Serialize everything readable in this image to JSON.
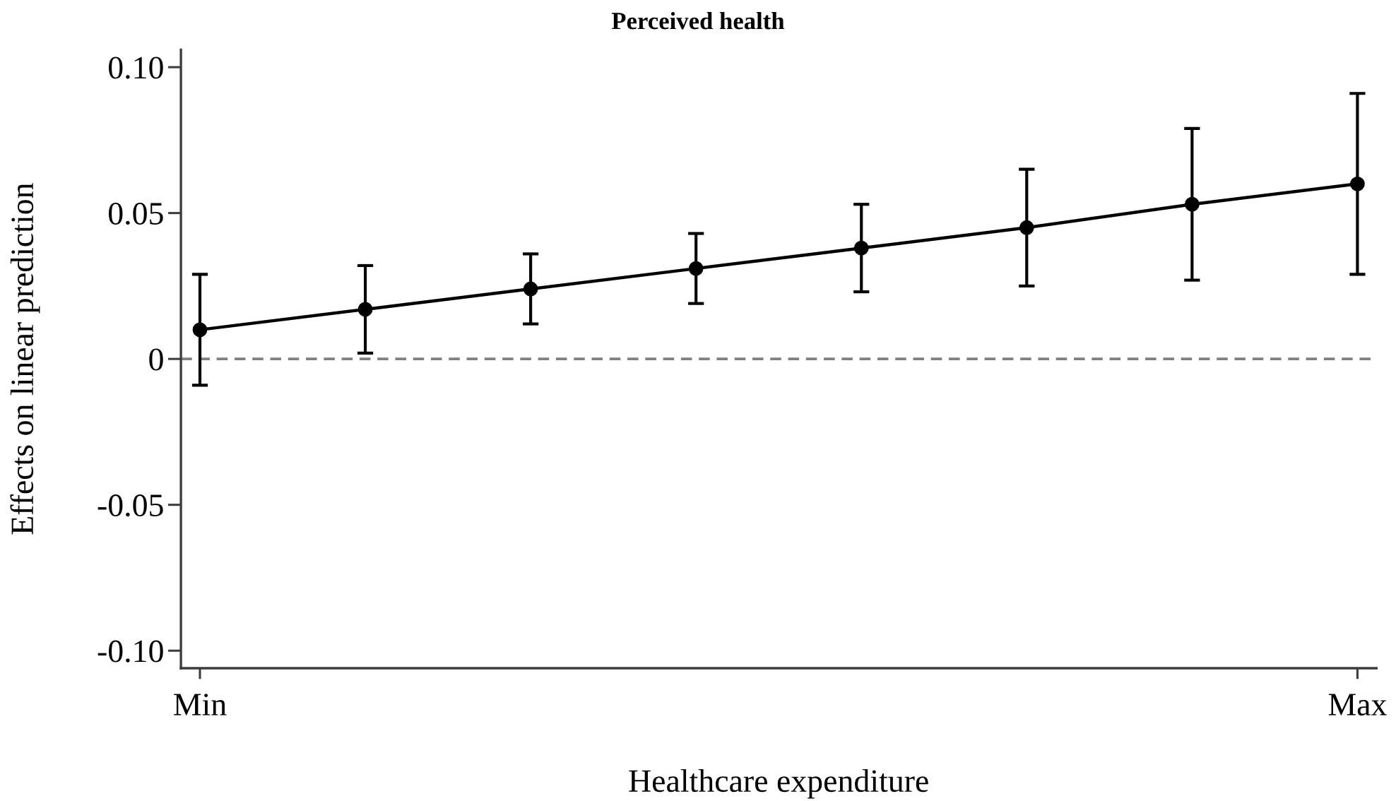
{
  "chart_data": {
    "type": "line",
    "title": "Perceived health",
    "xlabel": "Healthcare expenditure",
    "ylabel": "Effects on linear prediction",
    "categories": [
      "Min",
      null,
      null,
      null,
      null,
      null,
      null,
      "Max"
    ],
    "series": [
      {
        "color": "#000000",
        "values": [
          0.01,
          0.017,
          0.024,
          0.031,
          0.038,
          0.045,
          0.053,
          0.06
        ],
        "errors": [
          0.019,
          0.015,
          0.012,
          0.012,
          0.015,
          0.02,
          0.026,
          0.031
        ]
      }
    ],
    "ylim": [
      -0.106,
      0.106
    ],
    "yticks": [
      {
        "value": -0.1,
        "label": "-0.10"
      },
      -0.05,
      0,
      0.05,
      {
        "value": 0.1,
        "label": "0.10"
      }
    ],
    "ref_lines": [
      {
        "axis": "y",
        "value": 0,
        "color": "#808080",
        "line_style": "dashed"
      }
    ],
    "marker": "circle",
    "line_style": "solid"
  }
}
